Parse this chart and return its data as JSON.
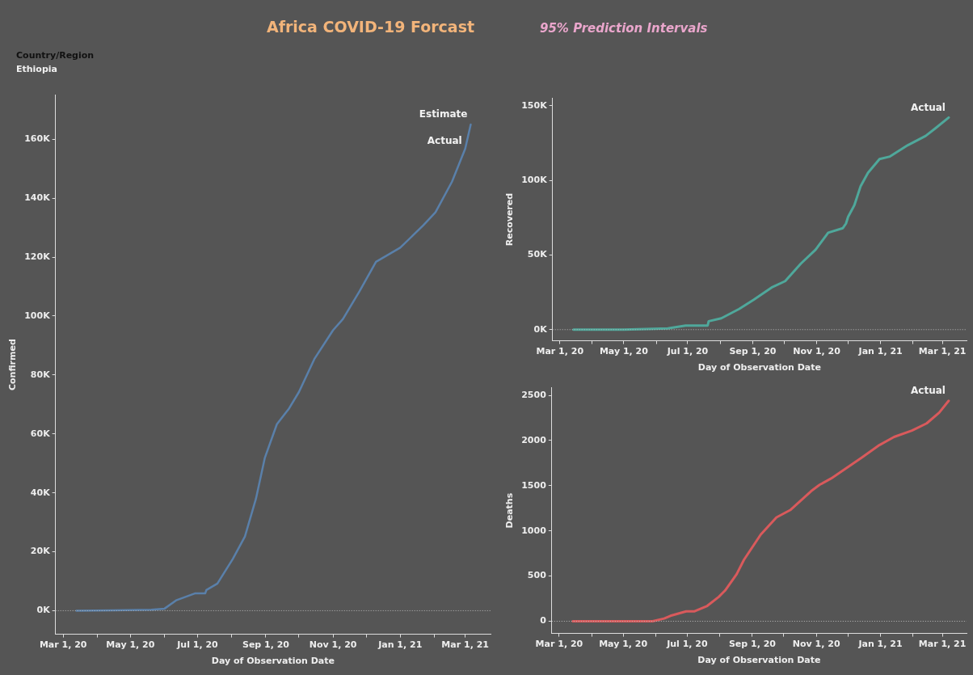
{
  "chart_data": [
    {
      "type": "other",
      "title": "Africa COVID-19 Forcast",
      "subtitle": "95% Prediction Intervals",
      "annotations": [
        "Country/Region",
        "Ethiopia"
      ]
    },
    {
      "type": "line",
      "annotations": [
        {
          "text": "Estimate",
          "x": "2021-03-06",
          "y": 165000
        },
        {
          "text": "Actual",
          "x": "2021-03-01",
          "y": 156000
        }
      ],
      "xlabel": "Day of Observation Date",
      "ylabel": "Confirmed",
      "x": [
        "2020-03-13",
        "2020-04-15",
        "2020-05-20",
        "2020-06-01",
        "2020-06-12",
        "2020-06-29",
        "2020-07-08",
        "2020-07-09",
        "2020-07-19",
        "2020-08-02",
        "2020-08-13",
        "2020-08-23",
        "2020-08-31",
        "2020-09-11",
        "2020-09-22",
        "2020-10-01",
        "2020-10-15",
        "2020-11-01",
        "2020-11-10",
        "2020-11-25",
        "2020-12-10",
        "2021-01-01",
        "2021-01-22",
        "2021-02-02",
        "2021-02-17",
        "2021-03-01",
        "2021-03-06"
      ],
      "series": [
        {
          "color": "#5a80aa",
          "values": [
            0,
            100,
            300,
            700,
            3600,
            5900,
            5900,
            7000,
            9200,
            17600,
            25200,
            38000,
            51800,
            63300,
            68600,
            74200,
            85400,
            95200,
            99000,
            108400,
            118400,
            123200,
            130800,
            135200,
            145600,
            156800,
            165000
          ]
        }
      ],
      "xlim": [
        "2020-02-23",
        "2021-03-24"
      ],
      "xticks": [
        {
          "value": "2020-03-01",
          "label": "Mar 1, 20"
        },
        {
          "value": "2020-04-01",
          "label": null
        },
        {
          "value": "2020-05-01",
          "label": "May 1, 20"
        },
        {
          "value": "2020-06-01",
          "label": null
        },
        {
          "value": "2020-07-01",
          "label": "Jul 1, 20"
        },
        {
          "value": "2020-08-01",
          "label": null
        },
        {
          "value": "2020-09-01",
          "label": "Sep 1, 20"
        },
        {
          "value": "2020-10-01",
          "label": null
        },
        {
          "value": "2020-11-01",
          "label": "Nov 1, 20"
        },
        {
          "value": "2020-12-01",
          "label": null
        },
        {
          "value": "2021-01-01",
          "label": "Jan 1, 21"
        },
        {
          "value": "2021-02-01",
          "label": null
        },
        {
          "value": "2021-03-01",
          "label": "Mar 1, 21"
        }
      ],
      "ylim": [
        -8000,
        175000
      ],
      "yticks": [
        {
          "value": 0,
          "label": "0K"
        },
        {
          "value": 20000,
          "label": "20K"
        },
        {
          "value": 40000,
          "label": "40K"
        },
        {
          "value": 60000,
          "label": "60K"
        },
        {
          "value": 80000,
          "label": "80K"
        },
        {
          "value": 100000,
          "label": "100K"
        },
        {
          "value": 120000,
          "label": "120K"
        },
        {
          "value": 140000,
          "label": "140K"
        },
        {
          "value": 160000,
          "label": "160K"
        }
      ],
      "ref_lines": [
        {
          "axis": "y",
          "value": 0,
          "line_style": "dotted",
          "color": "#bbbbbb"
        }
      ],
      "grid": false,
      "legend": false
    },
    {
      "type": "line",
      "annotations": [
        {
          "text": "Actual",
          "x": "2021-03-07",
          "y": 142100
        }
      ],
      "xlabel": "Day of Observation Date",
      "ylabel": "Recovered",
      "x": [
        "2020-03-14",
        "2020-05-01",
        "2020-06-12",
        "2020-06-29",
        "2020-07-20",
        "2020-07-21",
        "2020-08-02",
        "2020-08-19",
        "2020-09-02",
        "2020-09-19",
        "2020-10-02",
        "2020-10-17",
        "2020-10-31",
        "2020-11-12",
        "2020-11-26",
        "2020-11-29",
        "2020-12-01",
        "2020-12-07",
        "2020-12-13",
        "2020-12-20",
        "2020-12-31",
        "2021-01-10",
        "2021-01-27",
        "2021-02-13",
        "2021-02-23",
        "2021-03-07"
      ],
      "series": [
        {
          "color": "#4fa89b",
          "values": [
            0,
            0,
            800,
            2700,
            2700,
            5600,
            7600,
            13800,
            20000,
            28200,
            32500,
            44300,
            53600,
            64900,
            68000,
            71100,
            75600,
            83400,
            96200,
            105100,
            114300,
            116000,
            123600,
            129800,
            135300,
            142100
          ]
        }
      ],
      "xlim": [
        "2020-02-23",
        "2021-03-24"
      ],
      "xticks": [
        {
          "value": "2020-03-01",
          "label": "Mar 1, 20"
        },
        {
          "value": "2020-04-01",
          "label": null
        },
        {
          "value": "2020-05-01",
          "label": "May 1, 20"
        },
        {
          "value": "2020-06-01",
          "label": null
        },
        {
          "value": "2020-07-01",
          "label": "Jul 1, 20"
        },
        {
          "value": "2020-08-01",
          "label": null
        },
        {
          "value": "2020-09-01",
          "label": "Sep 1, 20"
        },
        {
          "value": "2020-10-01",
          "label": null
        },
        {
          "value": "2020-11-01",
          "label": "Nov 1, 20"
        },
        {
          "value": "2020-12-01",
          "label": null
        },
        {
          "value": "2021-01-01",
          "label": "Jan 1, 21"
        },
        {
          "value": "2021-02-01",
          "label": null
        },
        {
          "value": "2021-03-01",
          "label": "Mar 1, 21"
        }
      ],
      "ylim": [
        -7500,
        155000
      ],
      "yticks": [
        {
          "value": 0,
          "label": "0K"
        },
        {
          "value": 50000,
          "label": "50K"
        },
        {
          "value": 100000,
          "label": "100K"
        },
        {
          "value": 150000,
          "label": "150K"
        }
      ],
      "ref_lines": [
        {
          "axis": "y",
          "value": 0,
          "line_style": "dotted",
          "color": "#bbbbbb"
        }
      ],
      "grid": false,
      "legend": false
    },
    {
      "type": "line",
      "annotations": [
        {
          "text": "Actual",
          "x": "2021-03-07",
          "y": 2440
        }
      ],
      "xlabel": "Day of Observation Date",
      "ylabel": "Deaths",
      "x": [
        "2020-03-14",
        "2020-05-29",
        "2020-06-09",
        "2020-06-15",
        "2020-06-30",
        "2020-07-08",
        "2020-07-20",
        "2020-07-31",
        "2020-08-06",
        "2020-08-17",
        "2020-08-24",
        "2020-09-09",
        "2020-09-24",
        "2020-10-07",
        "2020-10-27",
        "2020-11-04",
        "2020-11-15",
        "2020-11-24",
        "2020-12-14",
        "2020-12-31",
        "2021-01-14",
        "2021-01-31",
        "2021-02-14",
        "2021-02-26",
        "2021-03-07"
      ],
      "series": [
        {
          "color": "#d95a5c",
          "values": [
            0,
            0,
            30,
            60,
            110,
            110,
            170,
            270,
            340,
            520,
            680,
            960,
            1150,
            1230,
            1440,
            1510,
            1580,
            1650,
            1810,
            1950,
            2040,
            2110,
            2190,
            2310,
            2440
          ]
        }
      ],
      "xlim": [
        "2020-02-23",
        "2021-03-24"
      ],
      "xticks": [
        {
          "value": "2020-03-01",
          "label": "Mar 1, 20"
        },
        {
          "value": "2020-04-01",
          "label": null
        },
        {
          "value": "2020-05-01",
          "label": "May 1, 20"
        },
        {
          "value": "2020-06-01",
          "label": null
        },
        {
          "value": "2020-07-01",
          "label": "Jul 1, 20"
        },
        {
          "value": "2020-08-01",
          "label": null
        },
        {
          "value": "2020-09-01",
          "label": "Sep 1, 20"
        },
        {
          "value": "2020-10-01",
          "label": null
        },
        {
          "value": "2020-11-01",
          "label": "Nov 1, 20"
        },
        {
          "value": "2020-12-01",
          "label": null
        },
        {
          "value": "2021-01-01",
          "label": "Jan 1, 21"
        },
        {
          "value": "2021-02-01",
          "label": null
        },
        {
          "value": "2021-03-01",
          "label": "Mar 1, 21"
        }
      ],
      "ylim": [
        -135,
        2585
      ],
      "yticks": [
        0,
        500,
        1000,
        1500,
        2000,
        2500
      ],
      "ref_lines": [
        {
          "axis": "y",
          "value": 0,
          "line_style": "dotted",
          "color": "#bbbbbb"
        }
      ],
      "grid": false,
      "legend": false
    }
  ]
}
